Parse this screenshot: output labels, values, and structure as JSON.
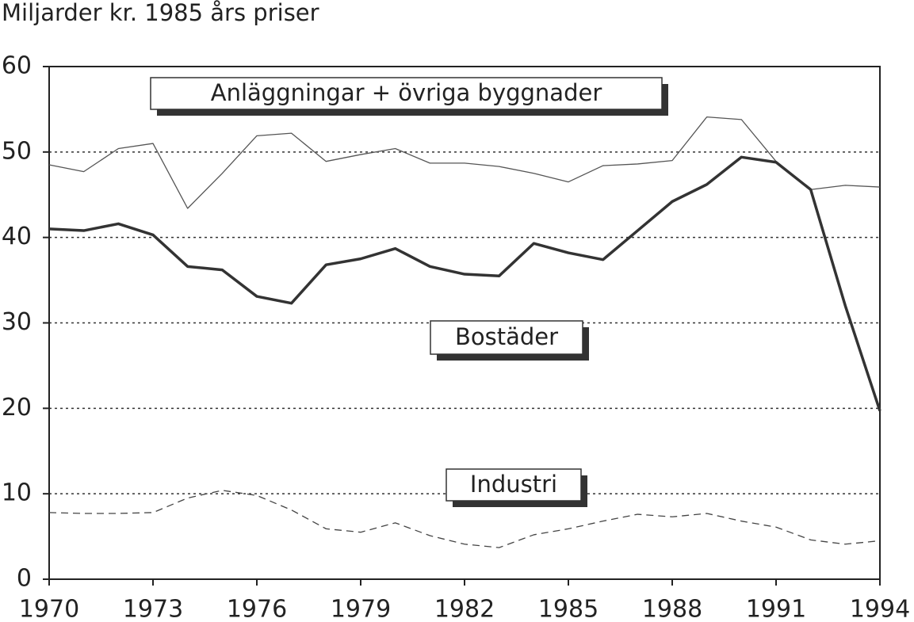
{
  "chart_data": {
    "type": "line",
    "y_label": "Miljarder kr. 1985 års priser",
    "x": [
      1970,
      1971,
      1972,
      1973,
      1974,
      1975,
      1976,
      1977,
      1978,
      1979,
      1980,
      1981,
      1982,
      1983,
      1984,
      1985,
      1986,
      1987,
      1988,
      1989,
      1990,
      1991,
      1992,
      1993,
      1994
    ],
    "series": [
      {
        "name": "Anläggningar + övriga byggnader",
        "color": "#555555",
        "values": [
          48.5,
          47.7,
          50.4,
          51.0,
          43.4,
          47.5,
          51.9,
          52.2,
          48.9,
          49.7,
          50.4,
          48.7,
          48.7,
          48.3,
          47.5,
          46.5,
          48.4,
          48.6,
          49.0,
          54.1,
          53.8,
          48.9,
          45.6,
          46.1,
          45.9
        ]
      },
      {
        "name": "Bostäder",
        "color": "#333333",
        "values": [
          41.0,
          40.8,
          41.6,
          40.3,
          36.6,
          36.2,
          33.1,
          32.3,
          36.8,
          37.5,
          38.7,
          36.6,
          35.7,
          35.5,
          39.3,
          38.2,
          37.4,
          40.8,
          44.2,
          46.2,
          49.4,
          48.8,
          45.6,
          32.0,
          19.7
        ]
      },
      {
        "name": "Industri",
        "color": "#444444",
        "values": [
          7.8,
          7.7,
          7.7,
          7.8,
          9.5,
          10.4,
          9.8,
          8.1,
          5.9,
          5.5,
          6.6,
          5.1,
          4.1,
          3.7,
          5.2,
          5.9,
          6.8,
          7.6,
          7.3,
          7.7,
          6.8,
          6.1,
          4.6,
          4.1,
          4.5
        ]
      }
    ],
    "xlim": [
      1970,
      1994
    ],
    "xticks": [
      1970,
      1973,
      1976,
      1979,
      1982,
      1985,
      1988,
      1991,
      1994
    ],
    "ylim": [
      0,
      60
    ],
    "yticks": [
      0,
      10,
      20,
      30,
      40,
      50,
      60
    ],
    "grid": true
  }
}
